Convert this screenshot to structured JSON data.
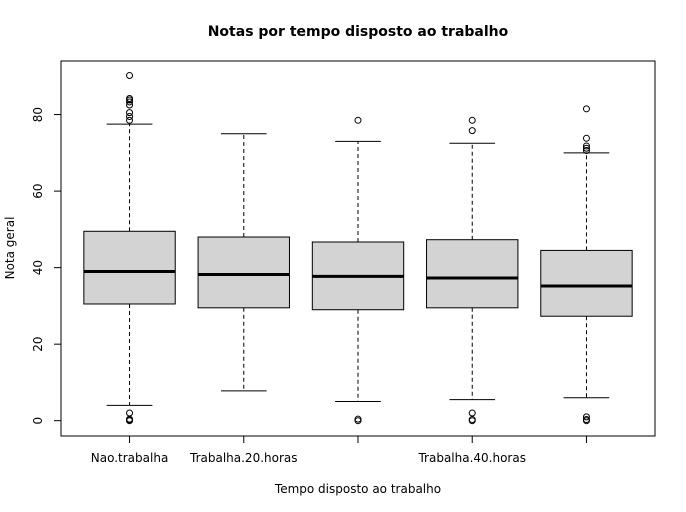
{
  "chart_data": {
    "type": "boxplot",
    "title": "Notas por tempo disposto ao trabalho",
    "xlabel": "Tempo disposto ao trabalho",
    "ylabel": "Nota geral",
    "ylim": [
      -4,
      94
    ],
    "yticks": [
      0,
      20,
      40,
      60,
      80
    ],
    "grid": false,
    "categories": [
      "Nao.trabalha",
      "Trabalha.20.horas",
      "",
      "Trabalha.40.horas",
      ""
    ],
    "boxes": [
      {
        "whisker_low": 4.0,
        "q1": 30.5,
        "median": 39.0,
        "q3": 49.5,
        "whisker_high": 77.5,
        "outliers": [
          0,
          0.2,
          0.4,
          2.0,
          78.5,
          79.5,
          80.5,
          82.5,
          83.3,
          83.8,
          84.2,
          90.2
        ]
      },
      {
        "whisker_low": 7.8,
        "q1": 29.5,
        "median": 38.2,
        "q3": 48.0,
        "whisker_high": 75.0,
        "outliers": []
      },
      {
        "whisker_low": 5.0,
        "q1": 29.0,
        "median": 37.7,
        "q3": 46.7,
        "whisker_high": 73.0,
        "outliers": [
          0,
          0.4,
          78.5
        ]
      },
      {
        "whisker_low": 5.5,
        "q1": 29.5,
        "median": 37.3,
        "q3": 47.3,
        "whisker_high": 72.5,
        "outliers": [
          0,
          0.3,
          2.0,
          75.8,
          78.5
        ]
      },
      {
        "whisker_low": 6.0,
        "q1": 27.3,
        "median": 35.2,
        "q3": 44.5,
        "whisker_high": 70.0,
        "outliers": [
          0,
          0.3,
          1.0,
          70.6,
          71.2,
          71.8,
          73.8,
          81.5
        ]
      }
    ]
  }
}
